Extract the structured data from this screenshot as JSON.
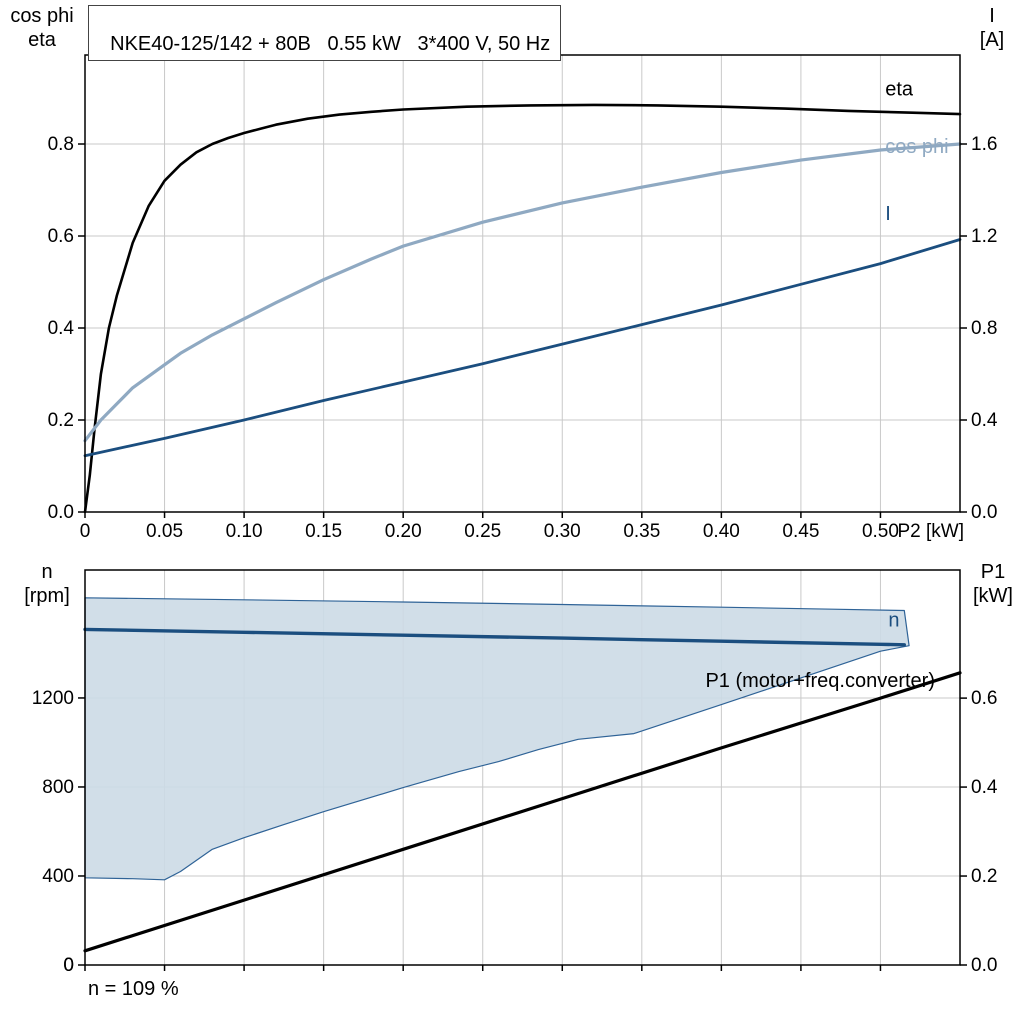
{
  "title_box": {
    "text": "NKE40-125/142 + 80B   0.55 kW   3*400 V, 50 Hz"
  },
  "footer_note": "n = 109 %",
  "axis_corner_titles": {
    "top_left": [
      "cos phi",
      "eta"
    ],
    "top_right": [
      "I",
      "[A]"
    ],
    "bottom_left": [
      "n",
      "[rpm]"
    ],
    "bottom_right": [
      "P1",
      "[kW]"
    ]
  },
  "colors": {
    "black": "#000000",
    "light_blue": "#8fa9c2",
    "dark_blue": "#1b4e7f",
    "region_fill": "#ccdae6",
    "region_stroke": "#2f6397",
    "grid": "#c9c9c9"
  },
  "chart_data": [
    {
      "type": "line",
      "name": "motor-chart",
      "box": {
        "l": 85,
        "r": 960,
        "t": 55,
        "b": 512
      },
      "x_axis": {
        "lim": [
          0,
          0.55
        ],
        "ticks": [
          0,
          0.05,
          0.1,
          0.15,
          0.2,
          0.25,
          0.3,
          0.35,
          0.4,
          0.45,
          0.5
        ],
        "tick_labels": [
          "0",
          "0.05",
          "0.10",
          "0.15",
          "0.20",
          "0.25",
          "0.30",
          "0.35",
          "0.40",
          "0.45",
          "0.50"
        ],
        "label": "P2 [kW]"
      },
      "left_axis": {
        "lim": [
          0,
          0.9935
        ],
        "ticks": [
          0.0,
          0.2,
          0.4,
          0.6,
          0.8
        ],
        "tick_labels": [
          "0.0",
          "0.2",
          "0.4",
          "0.6",
          "0.8"
        ]
      },
      "right_axis": {
        "lim": [
          0,
          1.987
        ],
        "ticks": [
          0.0,
          0.4,
          0.8,
          1.2,
          1.6
        ],
        "tick_labels": [
          "0.0",
          "0.4",
          "0.8",
          "1.2",
          "1.6"
        ]
      },
      "series": [
        {
          "name": "eta",
          "axis": "left",
          "color": "#000000",
          "width": 2.6,
          "points": [
            [
              0,
              0
            ],
            [
              0.003,
              0.08
            ],
            [
              0.006,
              0.18
            ],
            [
              0.01,
              0.3
            ],
            [
              0.015,
              0.4
            ],
            [
              0.02,
              0.47
            ],
            [
              0.03,
              0.585
            ],
            [
              0.04,
              0.665
            ],
            [
              0.05,
              0.72
            ],
            [
              0.06,
              0.755
            ],
            [
              0.07,
              0.782
            ],
            [
              0.08,
              0.8
            ],
            [
              0.09,
              0.813
            ],
            [
              0.1,
              0.824
            ],
            [
              0.12,
              0.842
            ],
            [
              0.14,
              0.855
            ],
            [
              0.16,
              0.864
            ],
            [
              0.18,
              0.87
            ],
            [
              0.2,
              0.875
            ],
            [
              0.24,
              0.881
            ],
            [
              0.28,
              0.884
            ],
            [
              0.32,
              0.885
            ],
            [
              0.36,
              0.884
            ],
            [
              0.4,
              0.881
            ],
            [
              0.44,
              0.877
            ],
            [
              0.48,
              0.872
            ],
            [
              0.52,
              0.868
            ],
            [
              0.55,
              0.865
            ]
          ]
        },
        {
          "name": "cos-phi",
          "axis": "left",
          "color": "#8fa9c2",
          "width": 3.2,
          "points": [
            [
              0,
              0.155
            ],
            [
              0.01,
              0.2
            ],
            [
              0.02,
              0.235
            ],
            [
              0.03,
              0.27
            ],
            [
              0.04,
              0.295
            ],
            [
              0.05,
              0.32
            ],
            [
              0.06,
              0.345
            ],
            [
              0.08,
              0.385
            ],
            [
              0.1,
              0.42
            ],
            [
              0.12,
              0.455
            ],
            [
              0.15,
              0.505
            ],
            [
              0.18,
              0.55
            ],
            [
              0.2,
              0.578
            ],
            [
              0.25,
              0.63
            ],
            [
              0.3,
              0.672
            ],
            [
              0.35,
              0.706
            ],
            [
              0.4,
              0.738
            ],
            [
              0.45,
              0.765
            ],
            [
              0.5,
              0.787
            ],
            [
              0.55,
              0.8
            ]
          ]
        },
        {
          "name": "current",
          "axis": "right",
          "color": "#1b4e7f",
          "width": 2.8,
          "points": [
            [
              0,
              0.245
            ],
            [
              0.05,
              0.32
            ],
            [
              0.1,
              0.4
            ],
            [
              0.15,
              0.485
            ],
            [
              0.2,
              0.565
            ],
            [
              0.25,
              0.645
            ],
            [
              0.3,
              0.73
            ],
            [
              0.35,
              0.815
            ],
            [
              0.4,
              0.9
            ],
            [
              0.45,
              0.99
            ],
            [
              0.5,
              1.08
            ],
            [
              0.55,
              1.185
            ]
          ]
        }
      ],
      "labels": [
        {
          "name": "eta-label",
          "text": "eta",
          "x": 0.503,
          "y": 0.905,
          "axis": "left",
          "color": "#000000"
        },
        {
          "name": "cos-phi-label",
          "text": "cos phi",
          "x": 0.503,
          "y": 0.78,
          "axis": "left",
          "color": "#8fa9c2"
        },
        {
          "name": "current-label",
          "text": "I",
          "x": 0.503,
          "y": 1.27,
          "axis": "right",
          "color": "#1b4e7f"
        }
      ]
    },
    {
      "type": "line",
      "name": "speed-chart",
      "box": {
        "l": 85,
        "r": 960,
        "t": 15,
        "b": 410
      },
      "x_axis": {
        "lim": [
          0,
          0.55
        ],
        "ticks": [
          0,
          0.05,
          0.1,
          0.15,
          0.2,
          0.25,
          0.3,
          0.35,
          0.4,
          0.45,
          0.5
        ],
        "tick_labels": [
          "",
          "",
          "",
          "",
          "",
          "",
          "",
          "",
          "",
          "",
          ""
        ],
        "label": ""
      },
      "left_axis": {
        "lim": [
          0,
          1775
        ],
        "ticks": [
          0,
          400,
          800,
          1200
        ],
        "tick_labels": [
          "0",
          "400",
          "800",
          "1200"
        ]
      },
      "right_axis": {
        "lim": [
          0,
          0.888
        ],
        "ticks": [
          0.0,
          0.2,
          0.4,
          0.6
        ],
        "tick_labels": [
          "0.0",
          "0.2",
          "0.4",
          "0.6"
        ]
      },
      "regions": [
        {
          "name": "speed-control-envelope",
          "axis": "left",
          "fill": "#ccdae6",
          "opacity": 0.9,
          "stroke": "#2f6397",
          "points": [
            [
              0,
              1650
            ],
            [
              0.1,
              1641
            ],
            [
              0.2,
              1631
            ],
            [
              0.3,
              1620
            ],
            [
              0.4,
              1608
            ],
            [
              0.47,
              1599
            ],
            [
              0.515,
              1593
            ],
            [
              0.518,
              1435
            ],
            [
              0.5,
              1410
            ],
            [
              0.45,
              1290
            ],
            [
              0.4,
              1170
            ],
            [
              0.345,
              1040
            ],
            [
              0.31,
              1014
            ],
            [
              0.285,
              968
            ],
            [
              0.26,
              914
            ],
            [
              0.235,
              869
            ],
            [
              0.2,
              797
            ],
            [
              0.15,
              689
            ],
            [
              0.125,
              631
            ],
            [
              0.1,
              572
            ],
            [
              0.08,
              520
            ],
            [
              0.06,
              420
            ],
            [
              0.05,
              383
            ],
            [
              0.03,
              388
            ],
            [
              0,
              392
            ]
          ]
        }
      ],
      "series": [
        {
          "name": "speed",
          "axis": "left",
          "color": "#1b4e7f",
          "width": 3.4,
          "points": [
            [
              0,
              1508
            ],
            [
              0.1,
              1495
            ],
            [
              0.2,
              1482
            ],
            [
              0.3,
              1469
            ],
            [
              0.4,
              1455
            ],
            [
              0.5,
              1441
            ],
            [
              0.515,
              1439
            ]
          ]
        },
        {
          "name": "p1",
          "axis": "right",
          "color": "#000000",
          "width": 3.2,
          "points": [
            [
              0,
              0.032
            ],
            [
              0.1,
              0.146
            ],
            [
              0.2,
              0.26
            ],
            [
              0.3,
              0.374
            ],
            [
              0.4,
              0.488
            ],
            [
              0.5,
              0.6
            ],
            [
              0.55,
              0.657
            ]
          ]
        }
      ],
      "labels": [
        {
          "name": "speed-label",
          "text": "n",
          "x": 0.505,
          "y": 1520,
          "axis": "left",
          "color": "#1b4e7f"
        },
        {
          "name": "p1-label",
          "text": "P1 (motor+freq.converter)",
          "x": 0.39,
          "y": 0.625,
          "axis": "right",
          "color": "#000000"
        }
      ]
    }
  ]
}
